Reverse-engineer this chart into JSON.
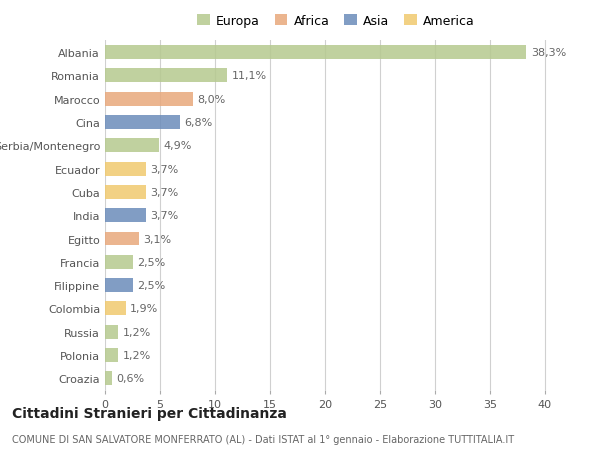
{
  "categories": [
    "Albania",
    "Romania",
    "Marocco",
    "Cina",
    "Serbia/Montenegro",
    "Ecuador",
    "Cuba",
    "India",
    "Egitto",
    "Francia",
    "Filippine",
    "Colombia",
    "Russia",
    "Polonia",
    "Croazia"
  ],
  "values": [
    38.3,
    11.1,
    8.0,
    6.8,
    4.9,
    3.7,
    3.7,
    3.7,
    3.1,
    2.5,
    2.5,
    1.9,
    1.2,
    1.2,
    0.6
  ],
  "labels": [
    "38,3%",
    "11,1%",
    "8,0%",
    "6,8%",
    "4,9%",
    "3,7%",
    "3,7%",
    "3,7%",
    "3,1%",
    "2,5%",
    "2,5%",
    "1,9%",
    "1,2%",
    "1,2%",
    "0,6%"
  ],
  "colors": [
    "#b5c98e",
    "#b5c98e",
    "#e8a87c",
    "#6b8cba",
    "#b5c98e",
    "#f0c96e",
    "#f0c96e",
    "#6b8cba",
    "#e8a87c",
    "#b5c98e",
    "#6b8cba",
    "#f0c96e",
    "#b5c98e",
    "#b5c98e",
    "#b5c98e"
  ],
  "continent_colors": {
    "Europa": "#b5c98e",
    "Africa": "#e8a87c",
    "Asia": "#6b8cba",
    "America": "#f0c96e"
  },
  "xlim": [
    0,
    42
  ],
  "xticks": [
    0,
    5,
    10,
    15,
    20,
    25,
    30,
    35,
    40
  ],
  "title": "Cittadini Stranieri per Cittadinanza",
  "subtitle": "COMUNE DI SAN SALVATORE MONFERRATO (AL) - Dati ISTAT al 1° gennaio - Elaborazione TUTTITALIA.IT",
  "background_color": "#ffffff",
  "grid_color": "#d0d0d0",
  "bar_height": 0.6,
  "label_fontsize": 8,
  "ytick_fontsize": 8,
  "xtick_fontsize": 8,
  "title_fontsize": 10,
  "subtitle_fontsize": 7
}
